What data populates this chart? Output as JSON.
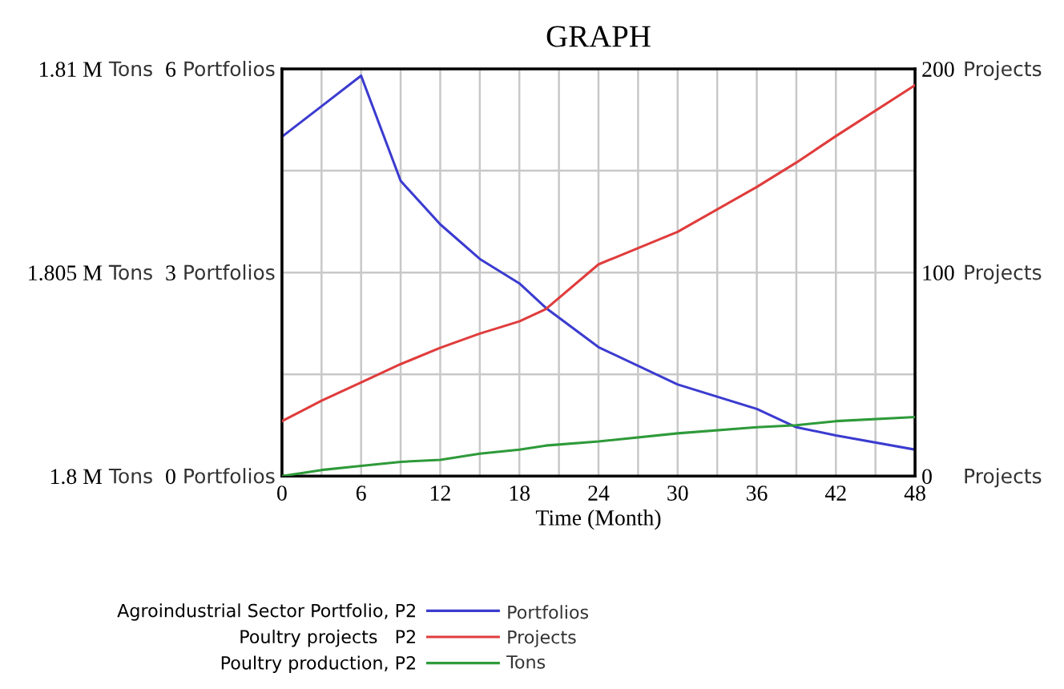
{
  "chart_data": {
    "type": "line",
    "title": "GRAPH",
    "xlabel": "Time (Month)",
    "ylabel": "Portfolios",
    "y2label": "Projects",
    "y3label": "Tons",
    "x": [
      0,
      3,
      6,
      9,
      12,
      15,
      18,
      20,
      24,
      30,
      36,
      39,
      42,
      48
    ],
    "xlim": [
      0,
      48
    ],
    "xticks": [
      0,
      {
        "value": 3,
        "label": null
      },
      6,
      {
        "value": 9,
        "label": null
      },
      12,
      {
        "value": 15,
        "label": null
      },
      18,
      {
        "value": 21,
        "label": null
      },
      24,
      {
        "value": 27,
        "label": null
      },
      30,
      {
        "value": 33,
        "label": null
      },
      36,
      {
        "value": 39,
        "label": null
      },
      42,
      {
        "value": 45,
        "label": null
      },
      48
    ],
    "ylim": [
      0,
      6
    ],
    "yticks": [
      0,
      {
        "value": 1.5,
        "label": null
      },
      3,
      {
        "value": 4.5,
        "label": null
      },
      6
    ],
    "y2lim": [
      0,
      200
    ],
    "y2ticks": [
      0,
      100,
      200
    ],
    "y3lim": [
      1800000,
      1810000
    ],
    "y3ticks": [
      {
        "value": 1800000,
        "label": "1.8 M"
      },
      {
        "value": 1805000,
        "label": "1.805 M"
      },
      {
        "value": 1810000,
        "label": "1.81 M"
      }
    ],
    "grid": true,
    "legend": "bottom",
    "series": [
      {
        "name": "Agroindustrial Sector Portfolio, P2",
        "color": "#3b3bd0",
        "values": [
          5.0,
          5.45,
          5.9,
          4.35,
          3.71,
          3.2,
          2.84,
          2.48,
          1.9,
          1.35,
          0.99,
          0.72,
          0.6,
          0.39
        ]
      },
      {
        "name": "Poultry projects   P2",
        "color": "#e03c3c",
        "axis": "y2",
        "values": [
          27,
          37,
          46,
          55,
          63,
          70,
          76,
          82,
          104,
          120,
          142,
          154,
          167,
          192
        ]
      },
      {
        "name": "Poultry production, P2",
        "color": "#2e9a3a",
        "axis": "y3",
        "values": [
          1800000,
          1800150,
          1800250,
          1800350,
          1800400,
          1800550,
          1800650,
          1800750,
          1800850,
          1801050,
          1801200,
          1801250,
          1801350,
          1801450
        ]
      }
    ]
  }
}
